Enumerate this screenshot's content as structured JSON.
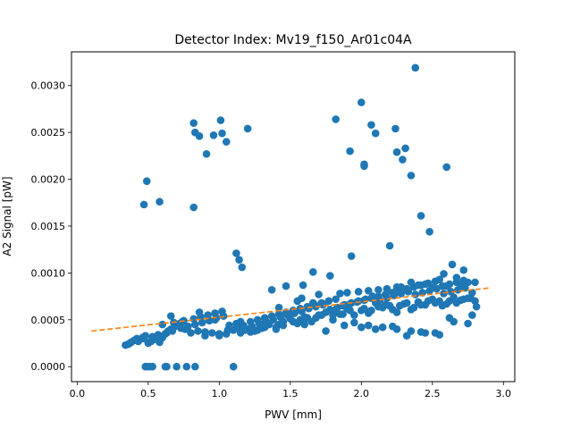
{
  "chart_data": {
    "type": "scatter",
    "title": "Detector Index: Mv19_f150_Ar01c04A",
    "xlabel": "PWV [mm]",
    "ylabel": "A2 Signal [pW]",
    "xlim": [
      -0.04,
      3.08
    ],
    "ylim": [
      -0.00016,
      0.00336
    ],
    "xticks": [
      0.0,
      0.5,
      1.0,
      1.5,
      2.0,
      2.5,
      3.0
    ],
    "xtick_labels": [
      "0.0",
      "0.5",
      "1.0",
      "1.5",
      "2.0",
      "2.5",
      "3.0"
    ],
    "yticks": [
      0.0,
      0.0005,
      0.001,
      0.0015,
      0.002,
      0.0025,
      0.003
    ],
    "ytick_labels": [
      "0.0000",
      "0.0005",
      "0.0010",
      "0.0015",
      "0.0020",
      "0.0025",
      "0.0030"
    ],
    "series": [
      {
        "name": "data",
        "color": "#1f77b4",
        "style": "marker",
        "x": [
          0.48,
          0.49,
          0.51,
          0.53,
          0.62,
          0.63,
          0.7,
          0.77,
          0.83,
          0.47,
          0.49,
          0.58,
          0.82,
          0.82,
          0.83,
          0.86,
          0.91,
          0.96,
          1.01,
          1.02,
          1.05,
          1.2,
          1.12,
          1.14,
          1.16,
          1.82,
          1.92,
          2.0,
          2.02,
          2.02,
          2.07,
          2.1,
          2.24,
          2.25,
          2.29,
          2.31,
          2.35,
          2.38,
          2.42,
          2.48,
          2.6,
          2.2,
          1.93,
          1.1,
          1.37,
          1.47,
          1.59,
          1.66,
          1.78,
          2.58,
          2.64,
          2.72,
          0.34,
          0.36,
          0.38,
          0.4,
          0.42,
          0.44,
          0.46,
          0.48,
          0.5,
          0.52,
          0.54,
          0.56,
          0.58,
          0.6,
          0.62,
          0.64,
          0.66,
          0.68,
          0.7,
          0.72,
          0.74,
          0.76,
          0.8,
          0.85,
          0.9,
          0.95,
          1.0,
          1.05,
          1.1,
          1.15,
          1.2,
          1.25,
          1.3,
          1.35,
          1.4,
          1.45,
          1.5,
          1.55,
          1.6,
          1.65,
          1.7,
          1.75,
          1.8,
          1.85,
          1.9,
          1.95,
          2.0,
          2.05,
          2.1,
          2.15,
          2.2,
          2.25,
          2.3,
          2.35,
          2.4,
          2.45,
          2.5,
          2.55,
          2.6,
          2.65,
          2.7,
          2.75,
          2.8,
          0.37,
          0.43,
          0.47,
          0.53,
          0.57,
          0.63,
          0.67,
          0.73,
          0.78,
          0.83,
          0.88,
          0.93,
          0.98,
          1.03,
          1.08,
          1.13,
          1.18,
          1.23,
          1.28,
          1.33,
          1.38,
          1.43,
          1.48,
          1.53,
          1.58,
          1.63,
          1.68,
          1.73,
          1.78,
          1.83,
          1.88,
          1.93,
          1.98,
          2.03,
          2.08,
          2.13,
          2.18,
          2.23,
          2.28,
          2.33,
          2.38,
          2.43,
          2.48,
          2.53,
          2.58,
          2.63,
          2.68,
          2.73,
          2.78,
          0.9,
          1.0,
          1.06,
          1.14,
          1.22,
          1.27,
          1.32,
          1.42,
          1.52,
          1.57,
          1.62,
          1.72,
          1.82,
          1.87,
          1.92,
          2.02,
          2.07,
          2.12,
          2.17,
          2.22,
          2.27,
          2.32,
          2.37,
          2.42,
          2.47,
          2.52,
          2.57,
          2.62,
          2.67,
          2.72,
          2.77,
          2.81,
          0.6,
          0.68,
          0.75,
          0.82,
          0.87,
          0.92,
          0.97,
          1.02,
          1.07,
          1.12,
          1.17,
          1.22,
          1.27,
          1.32,
          1.37,
          1.42,
          1.47,
          1.52,
          1.57,
          1.62,
          1.67,
          1.72,
          1.77,
          1.82,
          1.87,
          1.92,
          1.97,
          2.02,
          2.07,
          2.12,
          2.17,
          2.22,
          2.27,
          2.32,
          2.37,
          2.42,
          2.47,
          2.52,
          2.57,
          2.62,
          2.67,
          2.72,
          0.66,
          0.86,
          0.97,
          1.15,
          1.3,
          1.45,
          1.55,
          1.68,
          1.8,
          1.95,
          2.05,
          2.15,
          2.25,
          2.35,
          2.45,
          2.55,
          2.65,
          2.75,
          1.42,
          1.55,
          1.66,
          1.85,
          1.98,
          2.12,
          2.25,
          2.35,
          2.45,
          2.55,
          2.67,
          2.75,
          1.4,
          1.6,
          1.75,
          1.88,
          2.0,
          2.1,
          2.22,
          2.32,
          2.42,
          2.52,
          2.62,
          2.78,
          1.58,
          1.7,
          1.9,
          2.05,
          2.18,
          2.28,
          2.4,
          2.5,
          2.6,
          2.7,
          2.8
        ],
        "y": [
          0.0,
          0.0,
          0.0,
          0.0,
          0.0,
          0.0,
          0.0,
          0.0,
          0.0,
          0.00173,
          0.00198,
          0.00176,
          0.0017,
          0.0026,
          0.0025,
          0.00246,
          0.00227,
          0.00247,
          0.00263,
          0.00249,
          0.0024,
          0.00254,
          0.00121,
          0.00114,
          0.00106,
          0.00264,
          0.0023,
          0.00282,
          0.00214,
          0.00216,
          0.00258,
          0.00249,
          0.00254,
          0.00229,
          0.00221,
          0.00233,
          0.00204,
          0.00319,
          0.00161,
          0.00144,
          0.00213,
          0.00129,
          0.00118,
          0.0,
          0.00082,
          0.00086,
          0.00087,
          0.00101,
          0.00097,
          0.00099,
          0.00109,
          0.00103,
          0.00023,
          0.00024,
          0.00026,
          0.00028,
          0.0003,
          0.00029,
          0.00031,
          0.00033,
          0.00025,
          0.00027,
          0.00029,
          0.00031,
          0.00026,
          0.00031,
          0.00035,
          0.00038,
          0.0004,
          0.00042,
          0.00044,
          0.00046,
          0.00048,
          0.0004,
          0.00036,
          0.00038,
          0.00037,
          0.00036,
          0.00033,
          0.00035,
          0.00039,
          0.00036,
          0.0004,
          0.00038,
          0.00041,
          0.00045,
          0.00042,
          0.00048,
          0.00051,
          0.00046,
          0.00053,
          0.00048,
          0.00055,
          0.00058,
          0.0005,
          0.00056,
          0.00062,
          0.00055,
          0.0006,
          0.00057,
          0.00068,
          0.00063,
          0.00065,
          0.00058,
          0.00067,
          0.00061,
          0.00069,
          0.00066,
          0.00072,
          0.0007,
          0.00067,
          0.00074,
          0.00071,
          0.00073,
          0.0007,
          0.00025,
          0.00027,
          0.0003,
          0.00032,
          0.00034,
          0.00036,
          0.00038,
          0.00041,
          0.00043,
          0.00045,
          0.00047,
          0.00049,
          0.00052,
          0.00054,
          0.0004,
          0.00042,
          0.00039,
          0.00043,
          0.00046,
          0.00048,
          0.0005,
          0.00053,
          0.00055,
          0.00057,
          0.00059,
          0.00062,
          0.00064,
          0.00066,
          0.00061,
          0.00063,
          0.00066,
          0.00068,
          0.0007,
          0.00072,
          0.00075,
          0.00071,
          0.00073,
          0.00076,
          0.00078,
          0.0008,
          0.00077,
          0.00079,
          0.00081,
          0.00083,
          0.00078,
          0.0008,
          0.00082,
          0.00084,
          0.00079,
          0.00033,
          0.00035,
          0.00039,
          0.00043,
          0.00037,
          0.00039,
          0.00042,
          0.00045,
          0.00048,
          0.0005,
          0.00052,
          0.00055,
          0.00058,
          0.00056,
          0.0006,
          0.00062,
          0.0006,
          0.00064,
          0.00066,
          0.00061,
          0.00065,
          0.00068,
          0.00063,
          0.00066,
          0.0007,
          0.00068,
          0.00065,
          0.0007,
          0.00068,
          0.00072,
          0.00073,
          0.00064,
          0.00045,
          0.00047,
          0.00049,
          0.00051,
          0.00053,
          0.00055,
          0.00057,
          0.00059,
          0.00044,
          0.00046,
          0.00044,
          0.00048,
          0.0005,
          0.00052,
          0.00054,
          0.00056,
          0.00058,
          0.0006,
          0.00062,
          0.00064,
          0.00066,
          0.00068,
          0.0007,
          0.00072,
          0.00065,
          0.00067,
          0.00069,
          0.00071,
          0.00073,
          0.00075,
          0.00077,
          0.00079,
          0.00081,
          0.00083,
          0.00085,
          0.00087,
          0.00089,
          0.00091,
          0.00086,
          0.00088,
          0.0009,
          0.00092,
          0.00054,
          0.00058,
          0.0005,
          0.00048,
          0.00045,
          0.00044,
          0.00047,
          0.00052,
          0.00055,
          0.00047,
          0.00044,
          0.00042,
          0.0004,
          0.00038,
          0.00036,
          0.00034,
          0.00048,
          0.00046,
          0.00063,
          0.0007,
          0.00068,
          0.00078,
          0.0008,
          0.00082,
          0.00085,
          0.0009,
          0.00088,
          0.00093,
          0.00095,
          0.0009,
          0.0004,
          0.00045,
          0.00038,
          0.00044,
          0.00042,
          0.0004,
          0.00043,
          0.00033,
          0.00037,
          0.00036,
          0.00052,
          0.00055,
          0.00073,
          0.00077,
          0.00079,
          0.00081,
          0.00083,
          0.00085,
          0.00087,
          0.00084,
          0.00086,
          0.00088,
          0.0009
        ]
      },
      {
        "name": "fit",
        "color": "#ff7f0e",
        "style": "dashed-line",
        "x": [
          0.1,
          2.9
        ],
        "y": [
          0.00038,
          0.00084
        ]
      }
    ]
  }
}
